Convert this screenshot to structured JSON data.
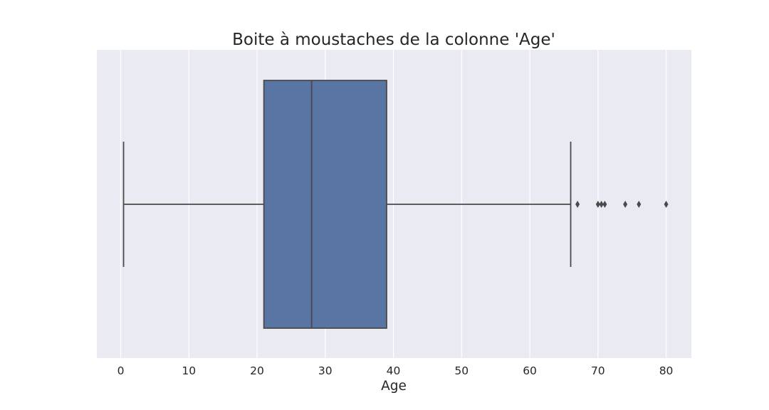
{
  "chart_data": {
    "type": "boxplot",
    "title": "Boite à moustaches de la colonne 'Age'",
    "xlabel": "Age",
    "ylabel": "",
    "orientation": "horizontal",
    "xlim": [
      -3.5,
      83.7
    ],
    "xticks": [
      0,
      10,
      20,
      30,
      40,
      50,
      60,
      70,
      80
    ],
    "xtick_labels": [
      "0",
      "10",
      "20",
      "30",
      "40",
      "50",
      "60",
      "70",
      "80"
    ],
    "grid": true,
    "series": [
      {
        "whisker_low": 0.42,
        "q1": 21,
        "median": 28,
        "q3": 39,
        "whisker_high": 66,
        "outliers": [
          67,
          70,
          70.5,
          71,
          74,
          76,
          80
        ]
      }
    ],
    "colors": {
      "plot_background": "#eaeaf2",
      "grid": "#ffffff",
      "box_fill": "#5875a4",
      "box_edge": "#4a4a4a",
      "text": "#262626"
    }
  }
}
